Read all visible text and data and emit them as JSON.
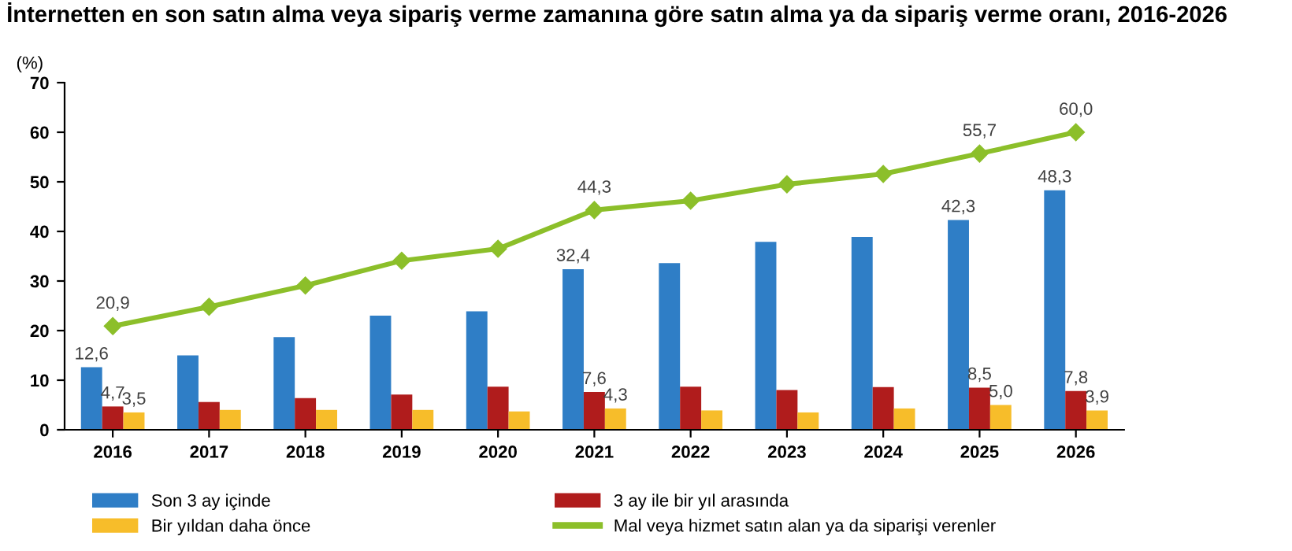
{
  "chart_data": {
    "type": "bar",
    "title": "İnternetten en son satın alma veya sipariş verme zamanına göre satın alma ya da sipariş verme oranı, 2016-2026",
    "ylabel": "(%)",
    "categories": [
      "2016",
      "2017",
      "2018",
      "2019",
      "2020",
      "2021",
      "2022",
      "2023",
      "2024",
      "2025",
      "2026"
    ],
    "series": [
      {
        "name": "Son 3 ay içinde",
        "color": "#2f7ec6",
        "values": [
          12.6,
          15.0,
          18.7,
          23.0,
          23.9,
          32.4,
          33.6,
          37.9,
          38.9,
          42.3,
          48.3
        ],
        "value_labels": [
          "12,6",
          null,
          null,
          null,
          null,
          "32,4",
          null,
          null,
          null,
          "42,3",
          "48,3"
        ]
      },
      {
        "name": "3 ay ile bir yıl arasında",
        "color": "#b01c1c",
        "values": [
          4.7,
          5.6,
          6.4,
          7.1,
          8.7,
          7.6,
          8.7,
          8.0,
          8.6,
          8.5,
          7.8
        ],
        "value_labels": [
          "4,7",
          null,
          null,
          null,
          null,
          "7,6",
          null,
          null,
          null,
          "8,5",
          "7,8"
        ]
      },
      {
        "name": "Bir yıldan daha önce",
        "color": "#f7bd2a",
        "values": [
          3.5,
          4.0,
          4.0,
          4.0,
          3.7,
          4.3,
          3.9,
          3.5,
          4.3,
          5.0,
          3.9
        ],
        "value_labels": [
          "3,5",
          null,
          null,
          null,
          null,
          "4,3",
          null,
          null,
          null,
          "5,0",
          "3,9"
        ]
      },
      {
        "name": "Mal veya hizmet satın alan ya da siparişi verenler",
        "type": "line",
        "color": "#8cbf2a",
        "marker": "diamond",
        "values": [
          20.9,
          24.8,
          29.1,
          34.1,
          36.5,
          44.3,
          46.2,
          49.5,
          51.6,
          55.7,
          60.0
        ],
        "value_labels": [
          "20,9",
          null,
          null,
          null,
          null,
          "44,3",
          null,
          null,
          null,
          "55,7",
          "60,0"
        ]
      }
    ],
    "ylim": [
      0,
      70
    ],
    "yticks": [
      0,
      10,
      20,
      30,
      40,
      50,
      60,
      70
    ],
    "grid": false,
    "legend": "bottom"
  }
}
